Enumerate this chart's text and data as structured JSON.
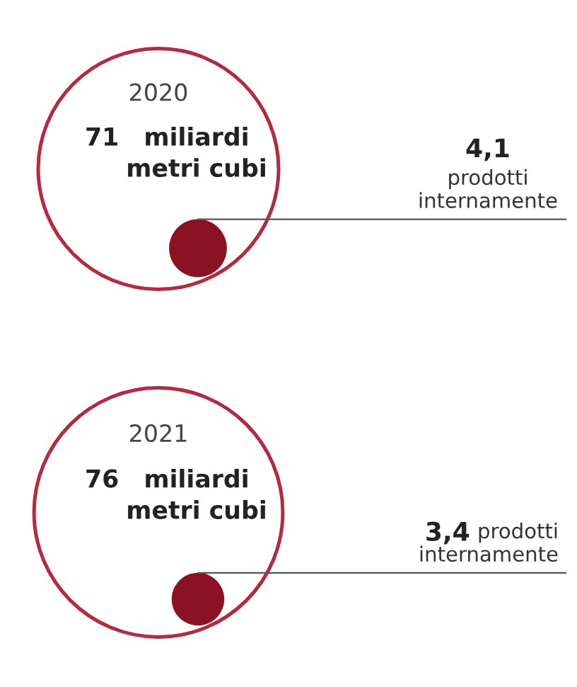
{
  "chart_data": [
    {
      "type": "other",
      "title": "2020",
      "values": [
        71,
        4.1
      ],
      "value_labels": [
        "71",
        "4,1"
      ],
      "colors": [
        "#b52a3c",
        "#8a1222"
      ],
      "annotations": [
        "miliardi\nmetri cubi",
        "prodotti\ninternamente"
      ]
    },
    {
      "type": "other",
      "title": "2021",
      "values": [
        76,
        3.4
      ],
      "value_labels": [
        "76",
        "3,4"
      ],
      "colors": [
        "#b52a3c",
        "#8a1222"
      ],
      "annotations": [
        "miliardi\nmetri cubi",
        "prodotti\ninternamente"
      ]
    }
  ]
}
